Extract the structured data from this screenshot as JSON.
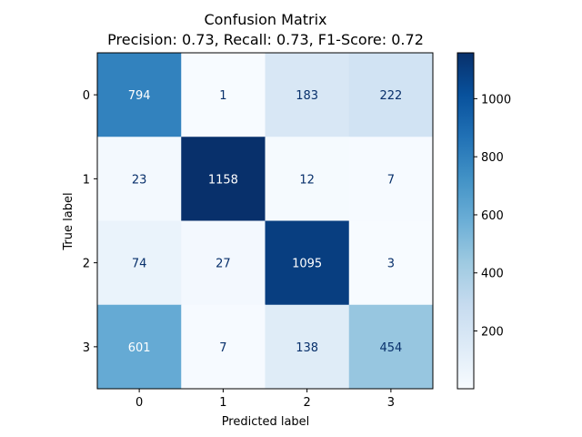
{
  "chart_data": {
    "type": "heatmap",
    "title": "Confusion Matrix",
    "subtitle": "Precision: 0.73, Recall: 0.73, F1-Score: 0.72",
    "xlabel": "Predicted label",
    "ylabel": "True label",
    "x_categories": [
      "0",
      "1",
      "2",
      "3"
    ],
    "y_categories": [
      "0",
      "1",
      "2",
      "3"
    ],
    "values": [
      [
        794,
        1,
        183,
        222
      ],
      [
        23,
        1158,
        12,
        7
      ],
      [
        74,
        27,
        1095,
        3
      ],
      [
        601,
        7,
        138,
        454
      ]
    ],
    "colormap": "Blues",
    "color_range": [
      1,
      1158
    ],
    "colorbar_ticks": [
      200,
      400,
      600,
      800,
      1000
    ],
    "grid": false
  }
}
